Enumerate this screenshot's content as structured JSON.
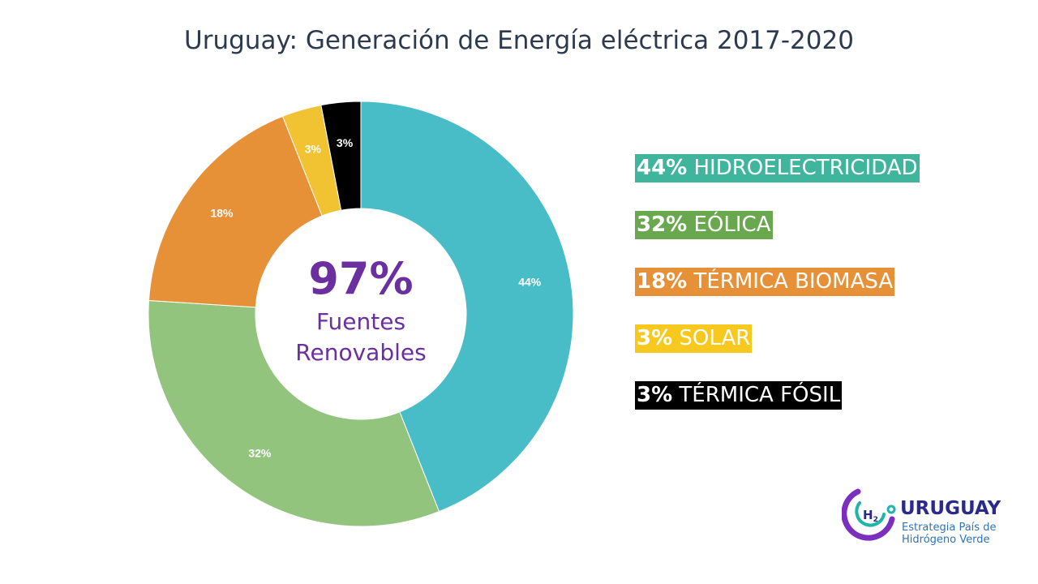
{
  "chart_data": {
    "type": "pie",
    "title": "Uruguay: Generación de Energía eléctrica 2017-2020",
    "donut": true,
    "center_label": {
      "value": "97%",
      "line1": "Fuentes",
      "line2": "Renovables"
    },
    "slices": [
      {
        "name": "HIDROELECTRICIDAD",
        "value": 44,
        "label": "44%",
        "color": "#48bdc8"
      },
      {
        "name": "EÓLICA",
        "value": 32,
        "label": "32%",
        "color": "#93c47d"
      },
      {
        "name": "TÉRMICA BIOMASA",
        "value": 18,
        "label": "18%",
        "color": "#e69138"
      },
      {
        "name": "SOLAR",
        "value": 3,
        "label": "3%",
        "color": "#f1c232"
      },
      {
        "name": "TÉRMICA FÓSIL",
        "value": 3,
        "label": "3%",
        "color": "#000000"
      }
    ],
    "legend": [
      {
        "pct": "44%",
        "text": " HIDROELECTRICIDAD",
        "bg": "#3fb59e"
      },
      {
        "pct": "32%",
        "text": " EÓLICA",
        "bg": "#6aa84f"
      },
      {
        "pct": "18%",
        "text": " TÉRMICA BIOMASA",
        "bg": "#e69138"
      },
      {
        "pct": "3%",
        "text": " SOLAR",
        "bg": "#f7c81e"
      },
      {
        "pct": "3%",
        "text": " TÉRMICA FÓSIL",
        "bg": "#000000"
      }
    ],
    "legend_placement": "right"
  },
  "logo": {
    "icon": "h2-logo-icon",
    "h2_text": "H2",
    "name": "URUGUAY",
    "subtitle_line1": "Estrategia País de",
    "subtitle_line2": "Hidrógeno Verde",
    "colors": {
      "purple": "#7b2fbe",
      "teal": "#1fb5a8",
      "navy": "#2a2a8c",
      "blue": "#2f74b5"
    }
  }
}
